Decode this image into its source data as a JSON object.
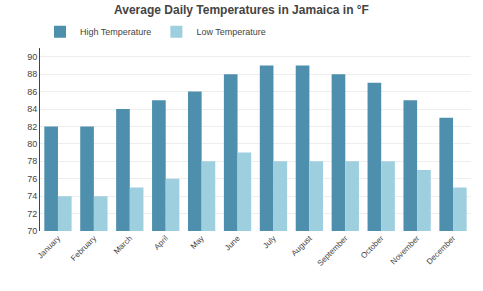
{
  "chart_data": {
    "type": "bar",
    "title": "Average Daily Temperatures in Jamaica in °F",
    "categories": [
      "January",
      "February",
      "March",
      "April",
      "May",
      "June",
      "July",
      "August",
      "September",
      "October",
      "November",
      "December"
    ],
    "series": [
      {
        "name": "High Temperature",
        "color": "#4D8FAC",
        "values": [
          82,
          82,
          84,
          85,
          86,
          88,
          89,
          89,
          88,
          87,
          85,
          83
        ]
      },
      {
        "name": "Low Temperature",
        "color": "#9ECFDF",
        "values": [
          74,
          74,
          75,
          76,
          78,
          79,
          78,
          78,
          78,
          78,
          77,
          75
        ]
      }
    ],
    "ylim": [
      70,
      91
    ],
    "yticks": [
      70,
      72,
      74,
      76,
      78,
      80,
      82,
      84,
      86,
      88,
      90
    ],
    "grid": true,
    "legend": "upper left"
  }
}
